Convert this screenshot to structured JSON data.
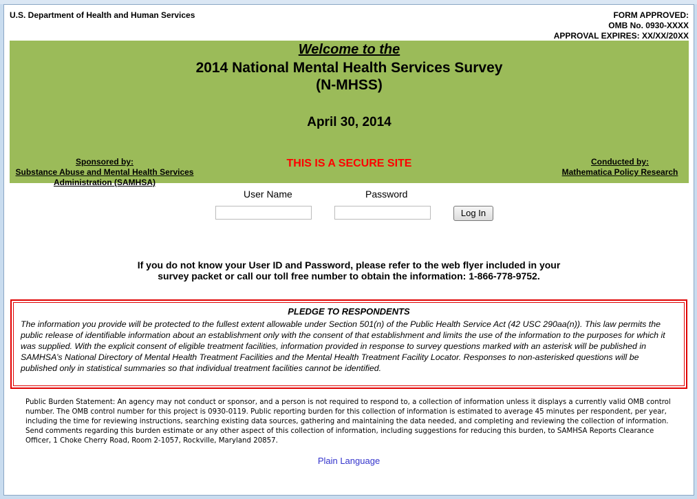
{
  "header": {
    "department": "U.S. Department of Health and Human Services",
    "form_approved": "FORM APPROVED:",
    "omb": "OMB No. 0930-XXXX",
    "expires": "APPROVAL EXPIRES: XX/XX/20XX"
  },
  "banner": {
    "welcome": "Welcome to the",
    "title_line1": "2014 National Mental Health Services Survey",
    "title_line2": "(N-MHSS)",
    "date": "April 30, 2014",
    "secure": "THIS IS A SECURE SITE",
    "sponsored_label": "Sponsored by:",
    "sponsor": "Substance Abuse and Mental Health Services Administration (SAMHSA)",
    "conducted_label": "Conducted by:",
    "conductor": "Mathematica Policy Research",
    "color": "#9bbb59"
  },
  "login": {
    "username_label": "User Name",
    "password_label": "Password",
    "username_value": "",
    "password_value": "",
    "button": "Log In"
  },
  "help": {
    "line1": "If you do not know your User ID and Password, please refer to the web flyer included in your",
    "line2": "survey packet or call our toll free number to obtain the information: 1-866-778-9752."
  },
  "pledge": {
    "title": "PLEDGE TO RESPONDENTS",
    "text": "The information you provide will be protected to the fullest extent allowable under Section 501(n) of the Public Health Service Act (42 USC 290aa(n)). This law permits the public release of identifiable information about an establishment only with the consent of that establishment and limits the use of the information to the purposes for which it was supplied. With the explicit consent of eligible treatment facilities, information provided in response to survey questions marked with an asterisk will be published in SAMHSA’s National Directory of Mental Health Treatment Facilities and the Mental Health Treatment Facility Locator. Responses to non-asterisked questions will be published only in statistical summaries so that individual treatment facilities cannot be identified."
  },
  "burden": "Public Burden Statement: An agency may not conduct or sponsor, and a person is not required to respond to, a collection of information unless it displays a currently valid OMB control number. The OMB control number for this project is 0930-0119. Public reporting burden for this collection of information is estimated to average 45 minutes per respondent, per year, including the time for reviewing instructions, searching existing data sources, gathering and maintaining the data needed, and completing and reviewing the collection of information. Send comments regarding this burden estimate or any other aspect of this collection of information, including suggestions for reducing this burden, to SAMHSA Reports Clearance Officer, 1 Choke Cherry Road, Room 2-1057, Rockville, Maryland 20857.",
  "footer": {
    "plain_language": "Plain Language"
  }
}
